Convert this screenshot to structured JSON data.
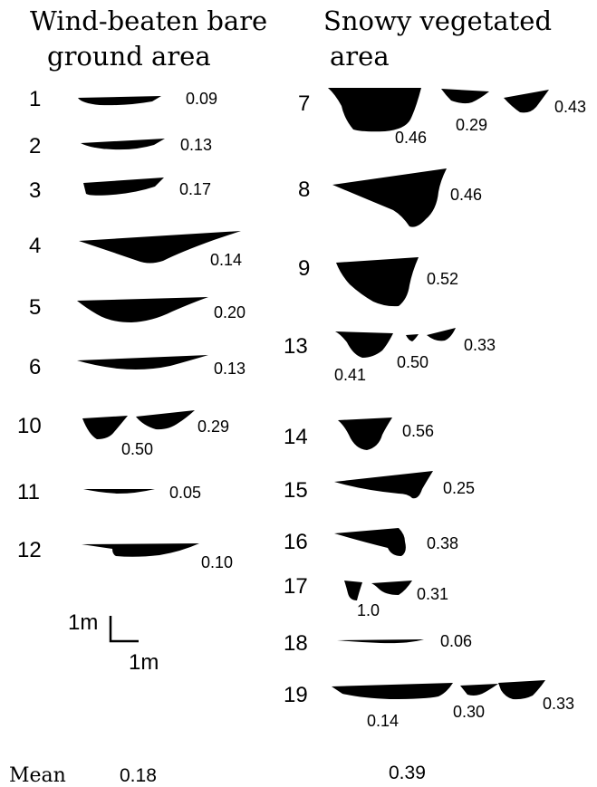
{
  "headings": {
    "left_line1": "Wind-beaten bare",
    "left_line2": "ground area",
    "right_line1": "Snowy vegetated",
    "right_line2": "area"
  },
  "left_rows": [
    {
      "id": "1",
      "values": [
        "0.09"
      ]
    },
    {
      "id": "2",
      "values": [
        "0.13"
      ]
    },
    {
      "id": "3",
      "values": [
        "0.17"
      ]
    },
    {
      "id": "4",
      "values": [
        "0.14"
      ]
    },
    {
      "id": "5",
      "values": [
        "0.20"
      ]
    },
    {
      "id": "6",
      "values": [
        "0.13"
      ]
    },
    {
      "id": "10",
      "values": [
        "0.50",
        "0.29"
      ]
    },
    {
      "id": "11",
      "values": [
        "0.05"
      ]
    },
    {
      "id": "12",
      "values": [
        "0.10"
      ]
    }
  ],
  "right_rows": [
    {
      "id": "7",
      "values": [
        "0.46",
        "0.29",
        "0.43"
      ]
    },
    {
      "id": "8",
      "values": [
        "0.46"
      ]
    },
    {
      "id": "9",
      "values": [
        "0.52"
      ]
    },
    {
      "id": "13",
      "values": [
        "0.41",
        "0.50",
        "0.33"
      ]
    },
    {
      "id": "14",
      "values": [
        "0.56"
      ]
    },
    {
      "id": "15",
      "values": [
        "0.25"
      ]
    },
    {
      "id": "16",
      "values": [
        "0.38"
      ]
    },
    {
      "id": "17",
      "values": [
        "1.0",
        "0.31"
      ]
    },
    {
      "id": "18",
      "values": [
        "0.06"
      ]
    },
    {
      "id": "19",
      "values": [
        "0.14",
        "0.30",
        "0.33"
      ]
    }
  ],
  "scale_bar": {
    "vertical_label": "1m",
    "horizontal_label": "1m"
  },
  "mean": {
    "label": "Mean",
    "left_value": "0.18",
    "right_value": "0.39"
  },
  "colors": {
    "profile_fill": "#000000",
    "background": "#ffffff"
  }
}
